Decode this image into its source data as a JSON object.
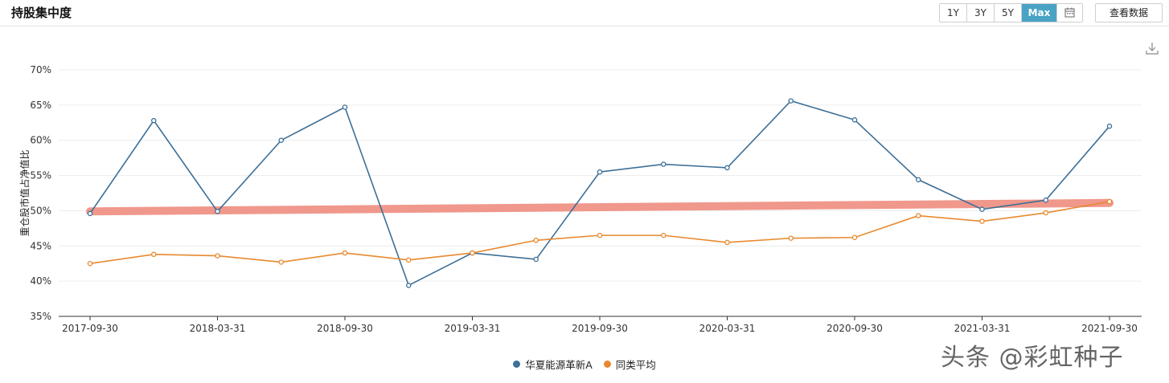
{
  "header": {
    "title": "持股集中度",
    "ranges": [
      "1Y",
      "3Y",
      "5Y",
      "Max"
    ],
    "active_range": "Max",
    "view_data_label": "查看数据"
  },
  "chart_data": {
    "type": "line",
    "ylabel": "重仓股市值占净值比",
    "xlabel": "",
    "ylim": [
      35,
      70
    ],
    "yticks": [
      "35%",
      "40%",
      "45%",
      "50%",
      "55%",
      "60%",
      "65%",
      "70%"
    ],
    "x_tick_labels": [
      "2017-09-30",
      "2018-03-31",
      "2018-09-30",
      "2019-03-31",
      "2019-09-30",
      "2020-03-31",
      "2020-09-30",
      "2021-03-31",
      "2021-09-30"
    ],
    "x": [
      "2017-09-30",
      "2017-12-31",
      "2018-03-31",
      "2018-06-30",
      "2018-09-30",
      "2018-12-31",
      "2019-03-31",
      "2019-06-30",
      "2019-09-30",
      "2019-12-31",
      "2020-03-31",
      "2020-06-30",
      "2020-09-30",
      "2020-12-31",
      "2021-03-31",
      "2021-06-30",
      "2021-09-30"
    ],
    "series": [
      {
        "name": "华夏能源革新A",
        "color": "#3d6f97",
        "values": [
          49.6,
          62.8,
          49.9,
          60.0,
          64.7,
          39.4,
          44.0,
          43.1,
          55.5,
          56.6,
          56.1,
          65.6,
          62.9,
          54.4,
          50.2,
          51.5,
          62.0
        ]
      },
      {
        "name": "同类平均",
        "color": "#e8892f",
        "values": [
          42.5,
          43.8,
          43.6,
          42.7,
          44.0,
          43.0,
          44.0,
          45.8,
          46.5,
          46.5,
          45.5,
          46.1,
          46.2,
          49.3,
          48.5,
          49.7,
          51.3
        ]
      }
    ],
    "trend_line": {
      "color": "#ef8d80",
      "from": 49.9,
      "to": 51.1
    },
    "grid": true,
    "legend": "bottom"
  },
  "watermark": "头条 @彩虹种子"
}
